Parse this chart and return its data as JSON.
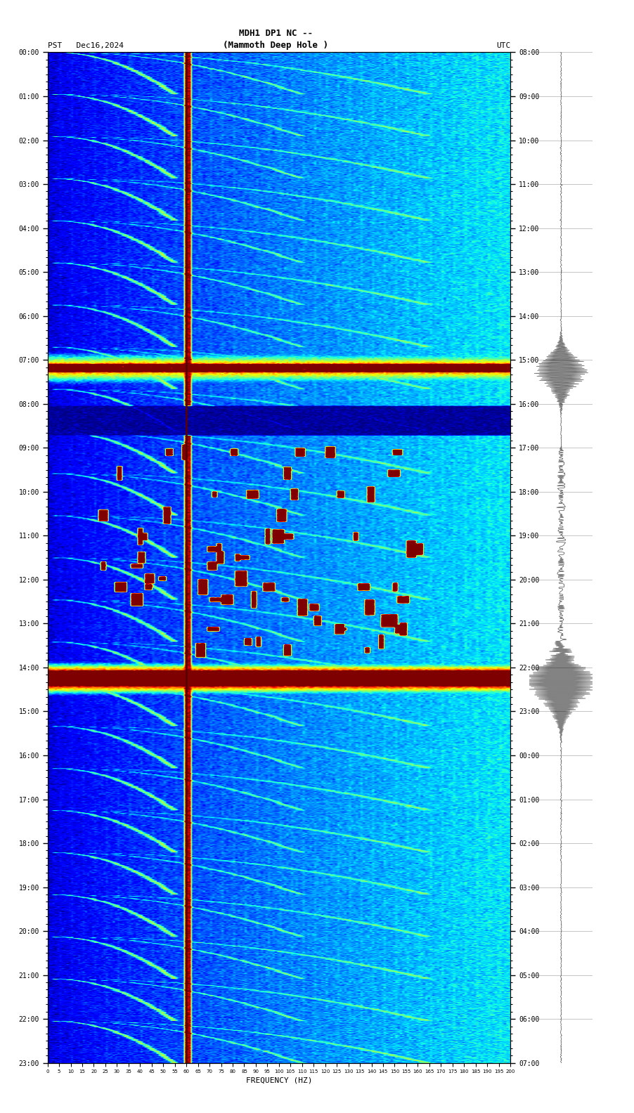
{
  "title_line1": "MDH1 DP1 NC --",
  "title_line2": "(Mammoth Deep Hole )",
  "left_label": "PST   Dec16,2024",
  "right_label": "UTC",
  "xlabel": "FREQUENCY (HZ)",
  "freq_ticks": [
    0,
    5,
    10,
    15,
    20,
    25,
    30,
    35,
    40,
    45,
    50,
    55,
    60,
    65,
    70,
    75,
    80,
    85,
    90,
    95,
    100,
    105,
    110,
    115,
    120,
    125,
    130,
    135,
    140,
    145,
    150,
    155,
    160,
    165,
    170,
    175,
    180,
    185,
    190,
    195,
    200
  ],
  "left_time_labels": [
    "00:00",
    "01:00",
    "02:00",
    "03:00",
    "04:00",
    "05:00",
    "06:00",
    "07:00",
    "08:00",
    "09:00",
    "10:00",
    "11:00",
    "12:00",
    "13:00",
    "14:00",
    "15:00",
    "16:00",
    "17:00",
    "18:00",
    "19:00",
    "20:00",
    "21:00",
    "22:00",
    "23:00"
  ],
  "right_time_labels": [
    "08:00",
    "09:00",
    "10:00",
    "11:00",
    "12:00",
    "13:00",
    "14:00",
    "15:00",
    "16:00",
    "17:00",
    "18:00",
    "19:00",
    "20:00",
    "21:00",
    "22:00",
    "23:00",
    "00:00",
    "01:00",
    "02:00",
    "03:00",
    "04:00",
    "05:00",
    "06:00",
    "07:00"
  ],
  "n_times": 1440,
  "n_freqs": 200,
  "bg_color": "white",
  "colormap": "jet",
  "dark_red_line_freq": 60,
  "seismogram_color": "black"
}
